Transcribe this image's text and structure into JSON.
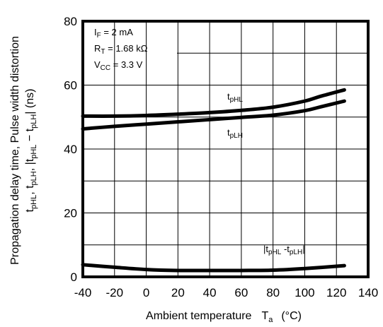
{
  "chart_data": {
    "type": "line",
    "xlabel": "Ambient temperature",
    "xlabel_symbol": "T",
    "xlabel_symbol_sub": "a",
    "xlabel_unit": "(°C)",
    "ylabel_line1": "Propagation delay time, Pulse width distortion",
    "ylabel_line2": {
      "t1": "t",
      "s1": "pHL",
      "sep1": ", t",
      "s2": "pLH",
      "sep2": ", |t",
      "s3": "pHL",
      "sep3": " − t",
      "s4": "pLH",
      "end": "|   (ns)"
    },
    "xlim": [
      -40,
      140
    ],
    "ylim": [
      0,
      80
    ],
    "x_ticks": [
      -40,
      -20,
      0,
      20,
      40,
      60,
      80,
      100,
      120,
      140
    ],
    "y_ticks": [
      0,
      20,
      40,
      60,
      80
    ],
    "grid": true,
    "conditions": [
      {
        "main": "I",
        "sub": "F",
        "rest": " = 2 mA"
      },
      {
        "main": "R",
        "sub": "T",
        "rest": " = 1.68 kΩ"
      },
      {
        "main": "V",
        "sub": "CC",
        "rest": " = 3.3 V"
      }
    ],
    "series": [
      {
        "name": "tpHL",
        "label_main": "t",
        "label_sub": "pHL",
        "x": [
          -40,
          -20,
          0,
          20,
          40,
          60,
          80,
          100,
          110,
          125
        ],
        "y": [
          50.3,
          50.3,
          50.5,
          50.9,
          51.4,
          52.1,
          53.1,
          55.0,
          56.5,
          58.5
        ]
      },
      {
        "name": "tpLH",
        "label_main": "t",
        "label_sub": "pLH",
        "x": [
          -40,
          -20,
          0,
          20,
          40,
          60,
          80,
          100,
          110,
          125
        ],
        "y": [
          46.3,
          47.1,
          47.8,
          48.5,
          49.2,
          49.9,
          50.6,
          52.0,
          53.2,
          55.0
        ]
      },
      {
        "name": "|tpHL - tpLH|",
        "label_main": "|t",
        "label_sub1": "pHL",
        "label_mid": " -t",
        "label_sub2": "pLH",
        "label_end": "|",
        "x": [
          -40,
          -20,
          0,
          20,
          40,
          60,
          80,
          100,
          125
        ],
        "y": [
          3.8,
          3.0,
          2.3,
          2.0,
          2.0,
          2.0,
          2.1,
          2.6,
          3.5
        ]
      }
    ]
  }
}
